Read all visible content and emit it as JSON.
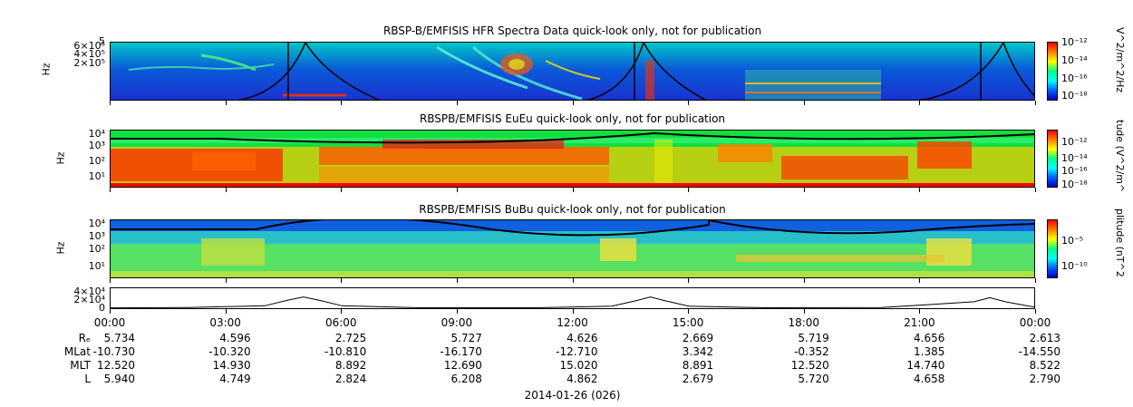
{
  "panels": [
    {
      "title": "RBSP-B/EMFISIS  HFR Spectra Data quick-look only, not for publication",
      "ylabel": "Hz",
      "yticks": [
        "5",
        "6×10⁵",
        "4×10⁵",
        "2×10⁵"
      ],
      "cbar_label": "V^2/m^2/Hz",
      "cbar_ticks": [
        "10⁻¹²",
        "10⁻¹⁴",
        "10⁻¹⁶",
        "10⁻¹⁸"
      ]
    },
    {
      "title": "RBSPB/EMFISIS  EuEu quick-look only, not for publication",
      "ylabel": "Hz",
      "yticks": [
        "10⁴",
        "10³",
        "10²",
        "10¹"
      ],
      "cbar_label": "tude (V^2/m^",
      "cbar_ticks": [
        "10⁻¹²",
        "10⁻¹⁴",
        "10⁻¹⁶",
        "10⁻¹⁸"
      ]
    },
    {
      "title": "RBSPB/EMFISIS  BuBu quick-look only, not for publication",
      "ylabel": "Hz",
      "yticks": [
        "10⁴",
        "10³",
        "10²",
        "10¹"
      ],
      "cbar_label": "plitude (nT^2",
      "cbar_ticks": [
        "10⁻⁵",
        "10⁻¹⁰"
      ]
    }
  ],
  "line_panel": {
    "yticks": [
      "4×10⁴",
      "2×10⁴",
      "0"
    ]
  },
  "colors": {
    "low": "#0000ff",
    "mid": "#00ff66",
    "high": "#ff0000",
    "bg_blue": "#1a3fd9"
  },
  "chart_data": {
    "type": "heatmap",
    "x_ticks": [
      "00:00",
      "03:00",
      "06:00",
      "09:00",
      "12:00",
      "15:00",
      "18:00",
      "21:00",
      "00:00"
    ],
    "x_hours": [
      0,
      3,
      6,
      9,
      12,
      15,
      18,
      21,
      24
    ],
    "ephemeris": [
      {
        "label": "Rₑ",
        "values": [
          "5.734",
          "4.596",
          "2.725",
          "5.727",
          "4.626",
          "2.669",
          "5.719",
          "4.656",
          "2.613"
        ]
      },
      {
        "label": "MLat",
        "values": [
          "-10.730",
          "-10.320",
          "-10.810",
          "-16.170",
          "-12.710",
          "3.342",
          "-0.352",
          "1.385",
          "-14.550"
        ]
      },
      {
        "label": "MLT",
        "values": [
          "12.520",
          "14.930",
          "8.892",
          "12.690",
          "15.020",
          "8.891",
          "12.520",
          "14.740",
          "8.522"
        ]
      },
      {
        "label": "L",
        "values": [
          "5.940",
          "4.749",
          "2.824",
          "6.208",
          "4.862",
          "2.679",
          "5.720",
          "4.658",
          "2.790"
        ]
      }
    ],
    "date_label": "2014-01-26 (026)",
    "line_series": {
      "x_hours": [
        0,
        2,
        4,
        4.6,
        5.0,
        5.4,
        6.0,
        8,
        11,
        13,
        13.6,
        14.0,
        14.4,
        15,
        17,
        20,
        22.4,
        22.8,
        23.2,
        24
      ],
      "values": [
        800,
        1500,
        6000,
        20000,
        28000,
        20000,
        6000,
        1200,
        1200,
        5000,
        18000,
        28000,
        18000,
        5000,
        1200,
        1500,
        16000,
        26000,
        16000,
        2000
      ]
    }
  }
}
